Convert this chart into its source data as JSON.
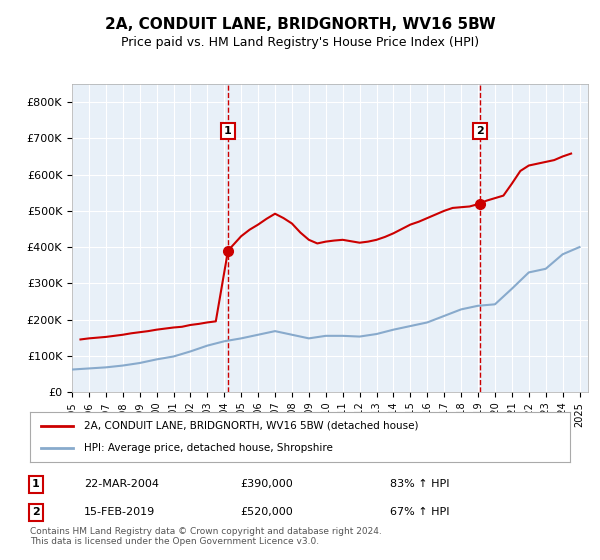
{
  "title": "2A, CONDUIT LANE, BRIDGNORTH, WV16 5BW",
  "subtitle": "Price paid vs. HM Land Registry's House Price Index (HPI)",
  "legend_line1": "2A, CONDUIT LANE, BRIDGNORTH, WV16 5BW (detached house)",
  "legend_line2": "HPI: Average price, detached house, Shropshire",
  "annotation1_label": "1",
  "annotation1_date": "22-MAR-2004",
  "annotation1_price": "£390,000",
  "annotation1_hpi": "83% ↑ HPI",
  "annotation1_year": 2004.22,
  "annotation1_value": 390000,
  "annotation2_label": "2",
  "annotation2_date": "15-FEB-2019",
  "annotation2_price": "£520,000",
  "annotation2_hpi": "67% ↑ HPI",
  "annotation2_year": 2019.12,
  "annotation2_value": 520000,
  "footer": "Contains HM Land Registry data © Crown copyright and database right 2024.\nThis data is licensed under the Open Government Licence v3.0.",
  "bg_color": "#dde8f0",
  "plot_bg_color": "#e8f0f8",
  "red_color": "#cc0000",
  "blue_color": "#88aacc",
  "ylim": [
    0,
    850000
  ],
  "yticks": [
    0,
    100000,
    200000,
    300000,
    400000,
    500000,
    600000,
    700000,
    800000
  ],
  "hpi_years": [
    1995,
    1996,
    1997,
    1998,
    1999,
    2000,
    2001,
    2002,
    2003,
    2004,
    2005,
    2006,
    2007,
    2008,
    2009,
    2010,
    2011,
    2012,
    2013,
    2014,
    2015,
    2016,
    2017,
    2018,
    2019,
    2020,
    2021,
    2022,
    2023,
    2024,
    2025
  ],
  "hpi_values": [
    62000,
    65000,
    68000,
    73000,
    80000,
    90000,
    98000,
    112000,
    128000,
    140000,
    148000,
    158000,
    168000,
    158000,
    148000,
    155000,
    155000,
    153000,
    160000,
    172000,
    182000,
    192000,
    210000,
    228000,
    238000,
    242000,
    285000,
    330000,
    340000,
    380000,
    400000
  ],
  "price_years": [
    1995.5,
    1996,
    1996.5,
    1997,
    1997.5,
    1998,
    1998.5,
    1999,
    1999.5,
    2000,
    2000.5,
    2001,
    2001.5,
    2002,
    2002.5,
    2003,
    2003.5,
    2004.22,
    2005,
    2005.5,
    2006,
    2006.5,
    2007,
    2007.5,
    2008,
    2008.5,
    2009,
    2009.5,
    2010,
    2010.5,
    2011,
    2011.5,
    2012,
    2012.5,
    2013,
    2013.5,
    2014,
    2014.5,
    2015,
    2015.5,
    2016,
    2016.5,
    2017,
    2017.5,
    2018,
    2018.5,
    2019.12,
    2019.5,
    2020,
    2020.5,
    2021,
    2021.5,
    2022,
    2022.5,
    2023,
    2023.5,
    2024,
    2024.5
  ],
  "price_values": [
    145000,
    148000,
    150000,
    152000,
    155000,
    158000,
    162000,
    165000,
    168000,
    172000,
    175000,
    178000,
    180000,
    185000,
    188000,
    192000,
    195000,
    390000,
    430000,
    448000,
    462000,
    478000,
    492000,
    480000,
    465000,
    440000,
    420000,
    410000,
    415000,
    418000,
    420000,
    416000,
    412000,
    415000,
    420000,
    428000,
    438000,
    450000,
    462000,
    470000,
    480000,
    490000,
    500000,
    508000,
    510000,
    512000,
    520000,
    528000,
    535000,
    542000,
    575000,
    610000,
    625000,
    630000,
    635000,
    640000,
    650000,
    658000
  ]
}
